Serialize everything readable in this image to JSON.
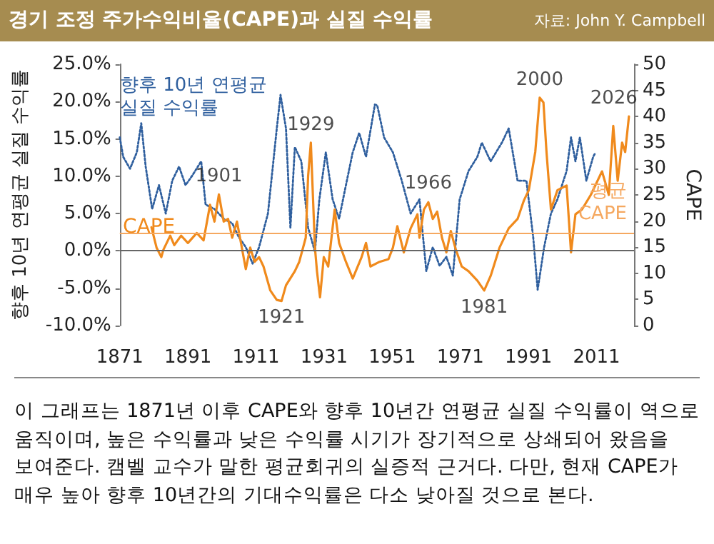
{
  "chart_data": {
    "type": "line",
    "title": "경기 조정 주가수익비율(CAPE)과 실질 수익률",
    "subtitle": "자료: John Y. Campbell",
    "ylabel": "향후 10년 연평균 실질 수익률",
    "y2label": "CAPE",
    "xlim": [
      1871,
      2022
    ],
    "xticks": [
      1871,
      1891,
      1911,
      1931,
      1951,
      1971,
      1991,
      2011
    ],
    "ylim": [
      -10,
      25
    ],
    "yticks": [
      {
        "value": -10,
        "label": "-10.0%"
      },
      {
        "value": -5,
        "label": "-5.0%"
      },
      {
        "value": 0,
        "label": "0.0%"
      },
      {
        "value": 5,
        "label": "5.0%"
      },
      {
        "value": 10,
        "label": "10.0%"
      },
      {
        "value": 15,
        "label": "15.0%"
      },
      {
        "value": 20,
        "label": "20.0%"
      },
      {
        "value": 25,
        "label": "25.0%"
      }
    ],
    "y2lim": [
      0,
      50
    ],
    "y2ticks": [
      0,
      5,
      10,
      15,
      20,
      25,
      30,
      35,
      40,
      45,
      50
    ],
    "grid": false,
    "legend": false,
    "series": [
      {
        "name": "향후 10년 연평균 실질 수익률",
        "color": "#2f5f9e",
        "line_style": "dotted",
        "x": [
          1871,
          1872,
          1874,
          1876,
          1877.3,
          1878.6,
          1880.5,
          1882.5,
          1884.5,
          1886.4,
          1888.4,
          1890.3,
          1892.3,
          1894.9,
          1896.2,
          1898.8,
          1901.5,
          1904,
          1906,
          1908,
          1910,
          1911.9,
          1914.5,
          1915.8,
          1917.1,
          1918.2,
          1919.8,
          1921.1,
          1922.4,
          1924.3,
          1926.3,
          1928.3,
          1929.6,
          1931.5,
          1933.5,
          1935.4,
          1937.4,
          1939.4,
          1941.3,
          1943.3,
          1945.9,
          1946.6,
          1948.6,
          1951.2,
          1953.8,
          1956.4,
          1959,
          1961,
          1962.9,
          1964.9,
          1966.9,
          1968.8,
          1970.8,
          1973.4,
          1976,
          1977.3,
          1979.9,
          1983.2,
          1985.2,
          1987.8,
          1990.4,
          1992.4,
          1993.7,
          1995.6,
          1997.6,
          1999.5,
          2002.2,
          2003.5,
          2004.8,
          2006.1,
          2008,
          2010,
          2010.7
        ],
        "values": [
          15.2,
          12.6,
          11,
          13.2,
          17.1,
          11.3,
          5.6,
          8.8,
          5,
          9.4,
          11.3,
          8.8,
          10.1,
          12,
          6.2,
          5.6,
          4.3,
          3.7,
          1.8,
          0.5,
          -1.7,
          0.5,
          5,
          10.7,
          16.4,
          20.9,
          16.4,
          3.1,
          13.9,
          12,
          3.1,
          -0.1,
          6.9,
          13.2,
          6.9,
          4.3,
          8.8,
          13.2,
          15.8,
          12.6,
          19.6,
          19.5,
          15.2,
          13.2,
          9.4,
          5,
          6.9,
          -2.7,
          0.5,
          -2,
          -0.8,
          -3.3,
          6.9,
          10.7,
          12.6,
          14.5,
          12,
          14.5,
          16.4,
          9.4,
          9.4,
          1.8,
          -5.2,
          0.5,
          5,
          6.9,
          10.7,
          15.2,
          12,
          15.2,
          9.4,
          12.6,
          13.2
        ]
      },
      {
        "name": "CAPE",
        "color": "#f08a1c",
        "line_style": "solid",
        "axis": "y2",
        "x": [
          1880.3,
          1881.8,
          1883.2,
          1883.8,
          1885.8,
          1887,
          1889,
          1891,
          1893.6,
          1895.6,
          1897.5,
          1898.8,
          1900.1,
          1901.5,
          1902.8,
          1904,
          1905.4,
          1906.7,
          1908,
          1909.3,
          1910.6,
          1911.9,
          1913.2,
          1915.2,
          1917.1,
          1918.5,
          1919.8,
          1922.4,
          1923.7,
          1925.6,
          1926.3,
          1927.1,
          1928.3,
          1928.9,
          1929.8,
          1930.9,
          1932.2,
          1934.1,
          1935.4,
          1937.4,
          1939.4,
          1942,
          1943.3,
          1944.6,
          1947.3,
          1949.9,
          1951.2,
          1952.5,
          1954.4,
          1956.4,
          1958.4,
          1959,
          1960.3,
          1961.6,
          1962.9,
          1964.2,
          1965.6,
          1966.9,
          1968.2,
          1969.5,
          1971.4,
          1973.4,
          1976,
          1978,
          1979.9,
          1982.5,
          1985.2,
          1987.8,
          1989.7,
          1991.1,
          1993,
          1994.3,
          1995.4,
          1996.3,
          1997.6,
          1999.5,
          2002.2,
          2003.5,
          2004.8,
          2006.7,
          2009.3,
          2012.6,
          2014.6,
          2015.9,
          2017.2,
          2018.5,
          2019.4,
          2020.5
        ],
        "values": [
          18.8,
          14.9,
          13.1,
          14.5,
          17.2,
          15.4,
          17.2,
          15.8,
          17.7,
          16.3,
          23.1,
          19.9,
          25.1,
          19.9,
          20.4,
          16.8,
          19.9,
          15.4,
          10.8,
          14.9,
          12.2,
          13.1,
          11.3,
          6.7,
          4.9,
          4.7,
          7.7,
          10.4,
          12.2,
          16.8,
          28.6,
          35,
          14.9,
          10.4,
          5.4,
          13.1,
          11.3,
          22.2,
          15.8,
          12.2,
          9,
          13.1,
          15.8,
          11.3,
          12.2,
          12.7,
          14.9,
          19,
          14,
          18.6,
          21.3,
          16.8,
          22.2,
          23.6,
          20.4,
          21.8,
          16.8,
          14,
          18.1,
          14.9,
          11.3,
          10.4,
          8.6,
          6.7,
          9.5,
          14.9,
          18.6,
          20.4,
          24,
          25.9,
          33.2,
          43.6,
          42.7,
          33.2,
          22.2,
          25.9,
          26.8,
          14,
          21.3,
          22.2,
          25,
          29.5,
          25,
          38.2,
          27.7,
          35,
          33.2,
          40
        ]
      }
    ],
    "ref_lines": [
      {
        "axis": "y",
        "value": 0,
        "label": null,
        "color": "#666666"
      },
      {
        "axis": "y2",
        "value": 17.8,
        "label": "평균 CAPE",
        "color": "#f5a860"
      }
    ],
    "annotations": [
      {
        "text": "1901",
        "x": 1900.1,
        "y": 7.6
      },
      {
        "text": "1929",
        "x": 1927.1,
        "y": 14.5
      },
      {
        "text": "1921",
        "x": 1918.5,
        "y": -6.6
      },
      {
        "text": "1966",
        "x": 1961.6,
        "y": 6.6
      },
      {
        "text": "1981",
        "x": 1978,
        "y": -5.2
      },
      {
        "text": "2000",
        "x": 1994.3,
        "y": 20.5
      },
      {
        "text": "2026",
        "x": 2020.5,
        "y": 18
      },
      "이 그래프는 1871년 이후 CAPE와 향후 10년간 연평균 실질 수익률이 역으로 움직이며, 높은 수익률과 낮은 수익률 시기가 장기적으로 상쇄되어 왔음을 보여준다. 캠벨 교수가 말한 평균회귀의 실증적 근거다. 다만, 현재 CAPE가 매우 높아 향후 10년간의 기대수익률은 다소 낮아질 것으로 본다."
    ]
  }
}
